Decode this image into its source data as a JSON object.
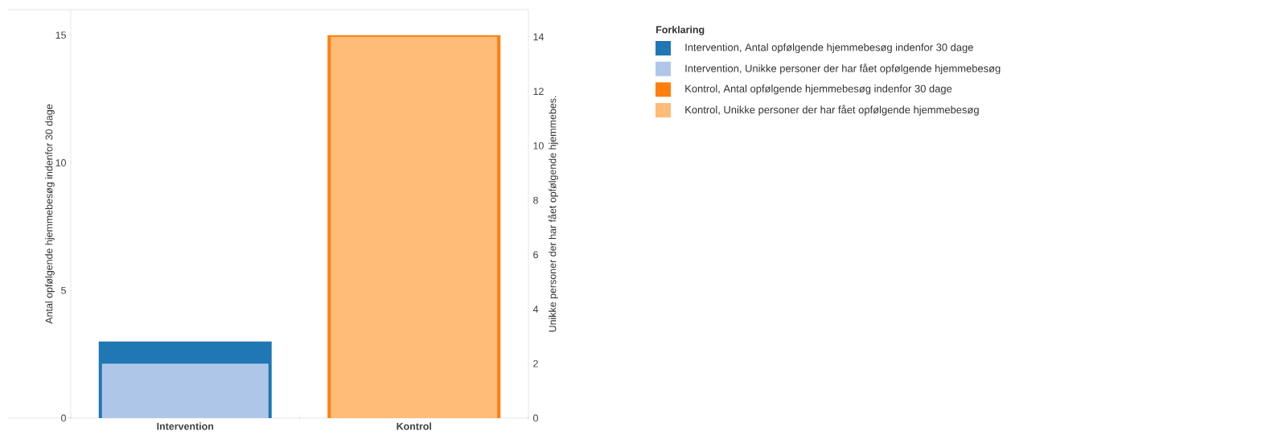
{
  "chart_data": {
    "type": "bar",
    "ylabel": "Antal opfølgende hjemmebesøg indenfor 30 dage",
    "y2label": "Unikke personer der har fået opfølgende hjemmebes.",
    "legend_title": "Forklaring",
    "categories": [
      "Intervention",
      "Kontrol"
    ],
    "series": [
      {
        "name": "Intervention, Antal opfølgende hjemmebesøg indenfor 30 dage",
        "color": "#1f77b4",
        "values": [
          3,
          null
        ]
      },
      {
        "name": "Intervention, Unikke personer der har fået opfølgende hjemmebesøg",
        "color": "#aec7e8",
        "values": [
          2,
          null
        ],
        "axis": "y2"
      },
      {
        "name": "Kontrol, Antal opfølgende hjemmebesøg indenfor 30 dage",
        "color": "#ff7f0e",
        "values": [
          null,
          15
        ]
      },
      {
        "name": "Kontrol, Unikke personer der har fået opfølgende hjemmebesøg",
        "color": "#ffbb78",
        "values": [
          null,
          14
        ],
        "axis": "y2"
      }
    ],
    "ylim": [
      0,
      16
    ],
    "yticks": [
      0,
      5,
      10,
      15
    ],
    "y2lim": [
      0,
      15
    ],
    "y2ticks": [
      0,
      2,
      4,
      6,
      8,
      10,
      12,
      14
    ],
    "grid": false,
    "legend": "right"
  }
}
